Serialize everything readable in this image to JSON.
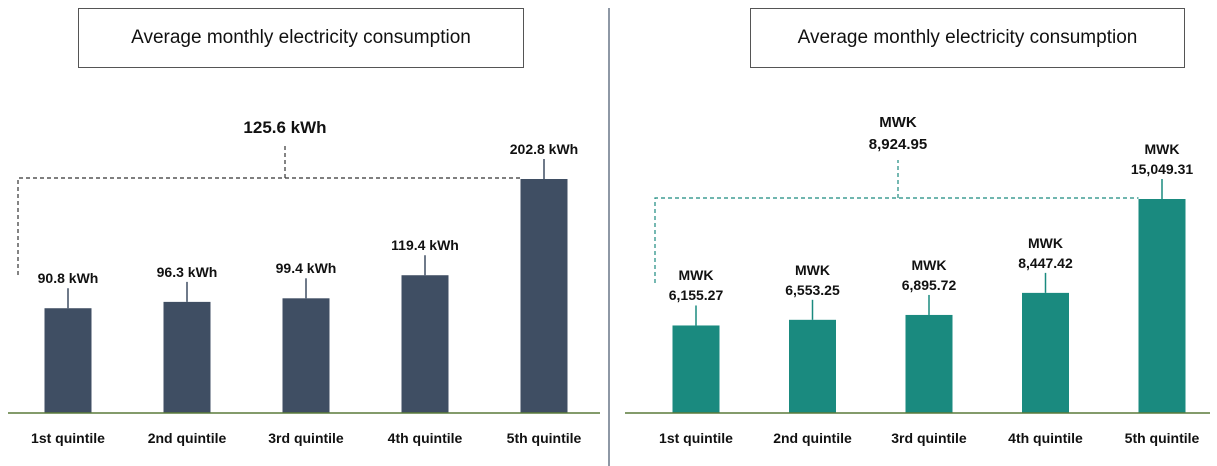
{
  "chart_data": [
    {
      "type": "bar",
      "title": "Average monthly electricity consumption",
      "categories": [
        "1st quintile",
        "2nd quintile",
        "3rd quintile",
        "4th quintile",
        "5th quintile"
      ],
      "values": [
        90.8,
        96.3,
        99.4,
        119.4,
        202.8
      ],
      "value_labels": [
        "90.8 kWh",
        "96.3 kWh",
        "99.4 kWh",
        "119.4 kWh",
        "202.8 kWh"
      ],
      "annotation": "125.6 kWh",
      "color": "#3f4e63"
    },
    {
      "type": "bar",
      "title": "Average monthly electricity consumption",
      "categories": [
        "1st quintile",
        "2nd quintile",
        "3rd quintile",
        "4th quintile",
        "5th quintile"
      ],
      "values": [
        6155.27,
        6553.25,
        6895.72,
        8447.42,
        15049.31
      ],
      "value_labels": [
        "MWK 6,155.27",
        "MWK 6,553.25",
        "MWK 6,895.72",
        "MWK 8,447.42",
        "MWK 15,049.31"
      ],
      "annotation": "MWK 8,924.95",
      "color": "#1a8a7f"
    }
  ]
}
